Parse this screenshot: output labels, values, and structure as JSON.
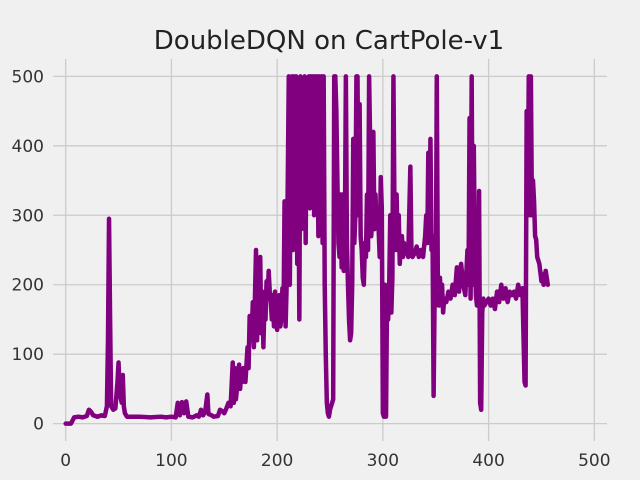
{
  "chart_data": {
    "type": "line",
    "title": "DoubleDQN on CartPole-v1",
    "xlabel": "",
    "ylabel": "",
    "xlim": [
      -12,
      512
    ],
    "ylim": [
      -25,
      525
    ],
    "xticks": [
      0,
      100,
      200,
      300,
      400,
      500
    ],
    "yticks": [
      0,
      100,
      200,
      300,
      400,
      500
    ],
    "grid": true,
    "legend": "none",
    "colors": {
      "background": "#f0f0f0",
      "grid": "#cbcbcb",
      "line": "#800080"
    },
    "series": [
      {
        "color": "#800080",
        "points": [
          [
            0,
            0
          ],
          [
            5,
            0
          ],
          [
            8,
            9
          ],
          [
            12,
            10
          ],
          [
            16,
            9
          ],
          [
            20,
            11
          ],
          [
            22,
            20
          ],
          [
            24,
            17
          ],
          [
            26,
            12
          ],
          [
            30,
            10
          ],
          [
            34,
            12
          ],
          [
            37,
            11
          ],
          [
            39,
            25
          ],
          [
            40,
            120
          ],
          [
            41,
            295
          ],
          [
            42,
            150
          ],
          [
            43,
            25
          ],
          [
            45,
            20
          ],
          [
            47,
            22
          ],
          [
            49,
            60
          ],
          [
            50,
            88
          ],
          [
            51,
            45
          ],
          [
            53,
            30
          ],
          [
            54,
            70
          ],
          [
            55,
            25
          ],
          [
            56,
            15
          ],
          [
            58,
            10
          ],
          [
            70,
            10
          ],
          [
            80,
            9
          ],
          [
            90,
            10
          ],
          [
            95,
            9
          ],
          [
            100,
            10
          ],
          [
            104,
            9
          ],
          [
            106,
            30
          ],
          [
            108,
            12
          ],
          [
            110,
            31
          ],
          [
            112,
            15
          ],
          [
            114,
            32
          ],
          [
            116,
            10
          ],
          [
            120,
            9
          ],
          [
            124,
            12
          ],
          [
            126,
            10
          ],
          [
            128,
            20
          ],
          [
            130,
            12
          ],
          [
            132,
            18
          ],
          [
            134,
            42
          ],
          [
            135,
            14
          ],
          [
            138,
            12
          ],
          [
            140,
            10
          ],
          [
            144,
            11
          ],
          [
            146,
            20
          ],
          [
            148,
            18
          ],
          [
            150,
            15
          ],
          [
            152,
            22
          ],
          [
            154,
            30
          ],
          [
            156,
            25
          ],
          [
            158,
            88
          ],
          [
            159,
            30
          ],
          [
            160,
            80
          ],
          [
            161,
            35
          ],
          [
            162,
            50
          ],
          [
            163,
            70
          ],
          [
            164,
            85
          ],
          [
            165,
            50
          ],
          [
            166,
            75
          ],
          [
            167,
            60
          ],
          [
            168,
            80
          ],
          [
            170,
            60
          ],
          [
            172,
            110
          ],
          [
            173,
            80
          ],
          [
            174,
            155
          ],
          [
            175,
            120
          ],
          [
            176,
            130
          ],
          [
            177,
            175
          ],
          [
            178,
            110
          ],
          [
            180,
            250
          ],
          [
            181,
            120
          ],
          [
            182,
            200
          ],
          [
            183,
            160
          ],
          [
            184,
            240
          ],
          [
            185,
            130
          ],
          [
            186,
            190
          ],
          [
            187,
            110
          ],
          [
            188,
            175
          ],
          [
            189,
            150
          ],
          [
            190,
            205
          ],
          [
            191,
            180
          ],
          [
            192,
            220
          ],
          [
            193,
            190
          ],
          [
            194,
            175
          ],
          [
            195,
            150
          ],
          [
            196,
            185
          ],
          [
            197,
            140
          ],
          [
            198,
            190
          ],
          [
            199,
            150
          ],
          [
            200,
            135
          ],
          [
            201,
            165
          ],
          [
            202,
            185
          ],
          [
            203,
            140
          ],
          [
            204,
            150
          ],
          [
            205,
            195
          ],
          [
            206,
            150
          ],
          [
            207,
            320
          ],
          [
            208,
            140
          ],
          [
            209,
            200
          ],
          [
            210,
            340
          ],
          [
            211,
            500
          ],
          [
            212,
            200
          ],
          [
            213,
            420
          ],
          [
            214,
            500
          ],
          [
            215,
            250
          ],
          [
            216,
            500
          ],
          [
            217,
            300
          ],
          [
            218,
            500
          ],
          [
            219,
            230
          ],
          [
            220,
            400
          ],
          [
            221,
            150
          ],
          [
            222,
            500
          ],
          [
            223,
            280
          ],
          [
            224,
            490
          ],
          [
            225,
            350
          ],
          [
            226,
            500
          ],
          [
            227,
            260
          ],
          [
            228,
            480
          ],
          [
            229,
            460
          ],
          [
            230,
            500
          ],
          [
            231,
            310
          ],
          [
            232,
            500
          ],
          [
            233,
            460
          ],
          [
            234,
            500
          ],
          [
            235,
            300
          ],
          [
            236,
            500
          ],
          [
            237,
            420
          ],
          [
            238,
            500
          ],
          [
            239,
            270
          ],
          [
            240,
            500
          ],
          [
            241,
            430
          ],
          [
            242,
            500
          ],
          [
            243,
            260
          ],
          [
            244,
            500
          ],
          [
            245,
            200
          ],
          [
            246,
            100
          ],
          [
            247,
            30
          ],
          [
            248,
            15
          ],
          [
            249,
            10
          ],
          [
            250,
            20
          ],
          [
            252,
            30
          ],
          [
            253,
            35
          ],
          [
            254,
            500
          ],
          [
            255,
            500
          ],
          [
            256,
            450
          ],
          [
            257,
            350
          ],
          [
            258,
            260
          ],
          [
            259,
            240
          ],
          [
            260,
            330
          ],
          [
            261,
            225
          ],
          [
            262,
            330
          ],
          [
            263,
            220
          ],
          [
            264,
            250
          ],
          [
            265,
            500
          ],
          [
            266,
            260
          ],
          [
            267,
            200
          ],
          [
            268,
            150
          ],
          [
            269,
            120
          ],
          [
            270,
            130
          ],
          [
            271,
            200
          ],
          [
            272,
            410
          ],
          [
            273,
            260
          ],
          [
            274,
            300
          ],
          [
            275,
            500
          ],
          [
            276,
            500
          ],
          [
            277,
            300
          ],
          [
            278,
            460
          ],
          [
            279,
            270
          ],
          [
            280,
            250
          ],
          [
            281,
            210
          ],
          [
            282,
            200
          ],
          [
            283,
            260
          ],
          [
            284,
            240
          ],
          [
            285,
            330
          ],
          [
            286,
            250
          ],
          [
            287,
            500
          ],
          [
            288,
            400
          ],
          [
            289,
            270
          ],
          [
            290,
            300
          ],
          [
            291,
            420
          ],
          [
            292,
            280
          ],
          [
            293,
            330
          ],
          [
            294,
            285
          ],
          [
            295,
            300
          ],
          [
            296,
            280
          ],
          [
            297,
            240
          ],
          [
            298,
            355
          ],
          [
            299,
            310
          ],
          [
            300,
            15
          ],
          [
            301,
            10
          ],
          [
            302,
            200
          ],
          [
            303,
            10
          ],
          [
            304,
            190
          ],
          [
            305,
            150
          ],
          [
            306,
            200
          ],
          [
            307,
            300
          ],
          [
            308,
            160
          ],
          [
            309,
            210
          ],
          [
            310,
            500
          ],
          [
            311,
            300
          ],
          [
            312,
            250
          ],
          [
            313,
            330
          ],
          [
            314,
            250
          ],
          [
            315,
            300
          ],
          [
            316,
            230
          ],
          [
            317,
            260
          ],
          [
            318,
            270
          ],
          [
            319,
            240
          ],
          [
            320,
            260
          ],
          [
            322,
            250
          ],
          [
            324,
            240
          ],
          [
            326,
            370
          ],
          [
            327,
            250
          ],
          [
            328,
            240
          ],
          [
            330,
            245
          ],
          [
            332,
            255
          ],
          [
            334,
            240
          ],
          [
            336,
            250
          ],
          [
            338,
            240
          ],
          [
            340,
            270
          ],
          [
            341,
            300
          ],
          [
            342,
            260
          ],
          [
            343,
            390
          ],
          [
            344,
            280
          ],
          [
            345,
            410
          ],
          [
            346,
            250
          ],
          [
            347,
            270
          ],
          [
            348,
            40
          ],
          [
            349,
            190
          ],
          [
            350,
            170
          ],
          [
            351,
            500
          ],
          [
            352,
            200
          ],
          [
            353,
            170
          ],
          [
            354,
            210
          ],
          [
            355,
            175
          ],
          [
            356,
            200
          ],
          [
            357,
            160
          ],
          [
            358,
            180
          ],
          [
            360,
            175
          ],
          [
            362,
            190
          ],
          [
            364,
            180
          ],
          [
            366,
            200
          ],
          [
            368,
            185
          ],
          [
            370,
            225
          ],
          [
            372,
            190
          ],
          [
            374,
            230
          ],
          [
            376,
            200
          ],
          [
            378,
            185
          ],
          [
            380,
            250
          ],
          [
            381,
            200
          ],
          [
            382,
            440
          ],
          [
            383,
            180
          ],
          [
            384,
            500
          ],
          [
            385,
            200
          ],
          [
            386,
            400
          ],
          [
            387,
            250
          ],
          [
            388,
            185
          ],
          [
            389,
            170
          ],
          [
            390,
            175
          ],
          [
            391,
            335
          ],
          [
            392,
            30
          ],
          [
            393,
            20
          ],
          [
            394,
            160
          ],
          [
            395,
            180
          ],
          [
            396,
            170
          ],
          [
            398,
            175
          ],
          [
            400,
            180
          ],
          [
            402,
            170
          ],
          [
            404,
            180
          ],
          [
            406,
            165
          ],
          [
            408,
            190
          ],
          [
            410,
            175
          ],
          [
            412,
            200
          ],
          [
            414,
            180
          ],
          [
            416,
            195
          ],
          [
            418,
            175
          ],
          [
            420,
            190
          ],
          [
            422,
            185
          ],
          [
            424,
            190
          ],
          [
            426,
            180
          ],
          [
            428,
            200
          ],
          [
            430,
            185
          ],
          [
            432,
            195
          ],
          [
            434,
            60
          ],
          [
            435,
            55
          ],
          [
            436,
            450
          ],
          [
            437,
            300
          ],
          [
            438,
            500
          ],
          [
            439,
            300
          ],
          [
            440,
            500
          ],
          [
            441,
            300
          ],
          [
            442,
            350
          ],
          [
            443,
            320
          ],
          [
            444,
            270
          ],
          [
            445,
            265
          ],
          [
            446,
            240
          ],
          [
            447,
            235
          ],
          [
            448,
            230
          ],
          [
            450,
            205
          ],
          [
            451,
            215
          ],
          [
            452,
            200
          ],
          [
            454,
            220
          ],
          [
            456,
            200
          ]
        ]
      }
    ]
  }
}
